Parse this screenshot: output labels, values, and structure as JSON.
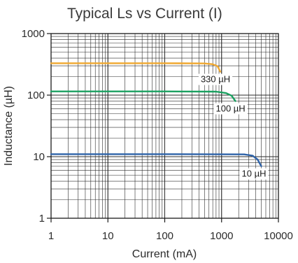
{
  "chart_data": {
    "type": "line",
    "title": "Typical Ls vs Current (I)",
    "xlabel": "Current (mA)",
    "ylabel": "Inductance (µH)",
    "x_scale": "log",
    "y_scale": "log",
    "xlim": [
      1,
      10000
    ],
    "ylim": [
      1,
      1000
    ],
    "x_ticks": [
      "1",
      "10",
      "100",
      "1000",
      "10000"
    ],
    "y_ticks": [
      "1",
      "10",
      "100",
      "1000"
    ],
    "grid": true,
    "series": [
      {
        "name": "330 µH",
        "color": "#f0a830",
        "points": [
          [
            1,
            330
          ],
          [
            100,
            330
          ],
          [
            500,
            327
          ],
          [
            700,
            318
          ],
          [
            850,
            295
          ],
          [
            950,
            240
          ]
        ]
      },
      {
        "name": "100 µH",
        "color": "#1aa060",
        "points": [
          [
            1,
            115
          ],
          [
            100,
            115
          ],
          [
            800,
            114
          ],
          [
            1200,
            108
          ],
          [
            1500,
            98
          ],
          [
            1750,
            80
          ]
        ]
      },
      {
        "name": "10 µH",
        "color": "#2f63a8",
        "points": [
          [
            1,
            11
          ],
          [
            100,
            11
          ],
          [
            2500,
            10.9
          ],
          [
            3500,
            10.4
          ],
          [
            4300,
            9.0
          ],
          [
            5000,
            7.0
          ]
        ]
      }
    ]
  }
}
